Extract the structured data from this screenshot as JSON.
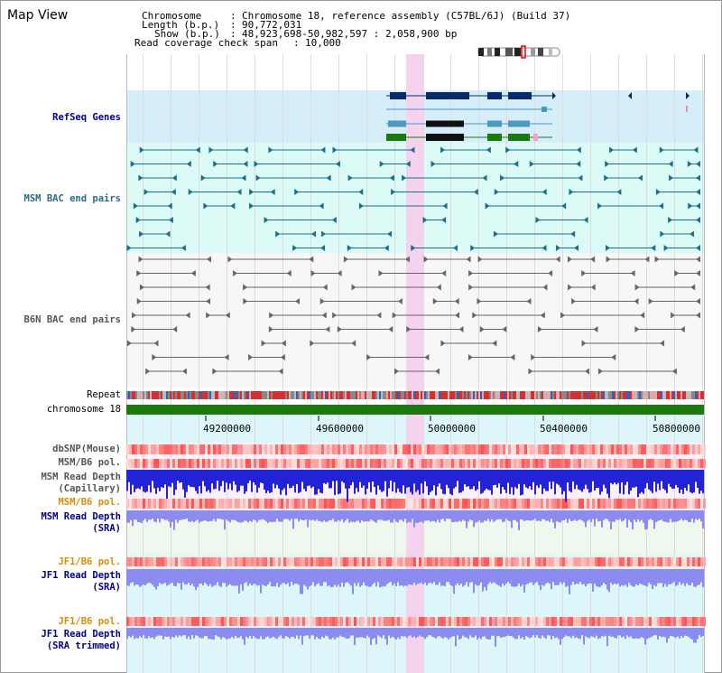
{
  "title": "Map View",
  "info": {
    "chromosome_key": "Chromosome",
    "chromosome_val": "Chromosome 18, reference assembly (C57BL/6J) (Build 37)",
    "length_key": "Length (b.p.)",
    "length_val": "90,772,031",
    "show_key": "Show (b.p.)",
    "show_val": "48,923,698-50,982,597 : 2,058,900 bp",
    "read_span_key": "Read coverage check span",
    "read_span_val": "10,000"
  },
  "tracks": {
    "refseq": "RefSeq Genes",
    "msm_bac": "MSM BAC end pairs",
    "b6n_bac": "B6N BAC end pairs",
    "repeat": "Repeat",
    "chromosome": "chromosome 18",
    "dbsnp": "dbSNP(Mouse)",
    "msm_b6_pol_1": "MSM/B6 pol.",
    "msm_depth_cap_1": "MSM Read Depth",
    "msm_depth_cap_2": "(Capillary)",
    "msm_b6_pol_2": "MSM/B6 pol.",
    "msm_depth_sra_1": "MSM Read Depth",
    "msm_depth_sra_2": "(SRA)",
    "jf1_b6_pol_1": "JF1/B6 pol.",
    "jf1_depth_sra_1": "JF1 Read Depth",
    "jf1_depth_sra_2": "(SRA)",
    "jf1_b6_pol_2": "JF1/B6 pol.",
    "jf1_depth_trim_1": "JF1 Read Depth",
    "jf1_depth_trim_2": "(SRA trimmed)"
  },
  "axis_ticks": [
    "49200000",
    "49600000",
    "50000000",
    "50400000",
    "50800000"
  ],
  "colors": {
    "refseq_bg": "#d6eefa",
    "msm_bg": "#dcfaf6",
    "highlight": "#f5d2ee",
    "chrom": "#1a7a10",
    "msm_depth": "#2323d6",
    "sra_depth": "#8c8cf0"
  }
}
